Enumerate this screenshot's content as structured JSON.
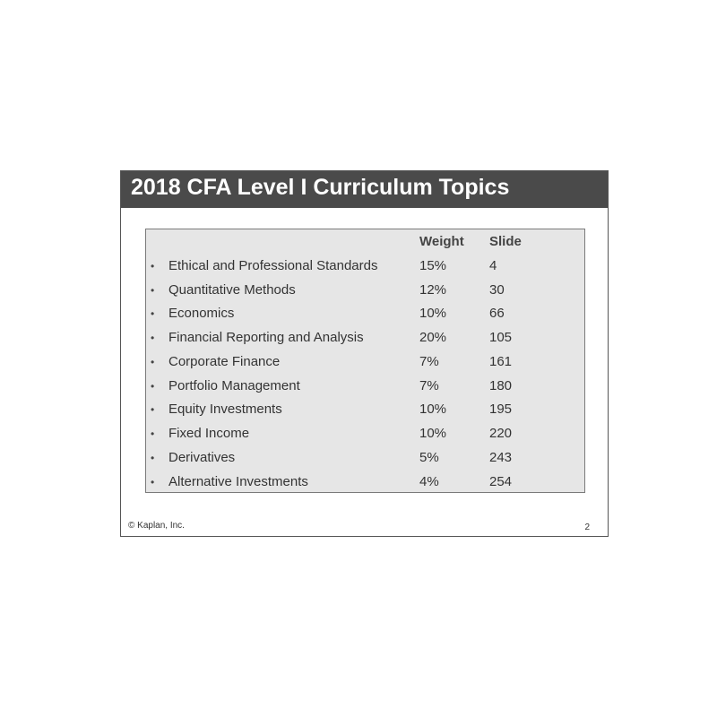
{
  "slide": {
    "title": "2018 CFA Level I Curriculum Topics",
    "columns": {
      "weight": "Weight",
      "slide": "Slide"
    },
    "rows": [
      {
        "topic": "Ethical and Professional Standards",
        "weight": "15%",
        "slide": "4"
      },
      {
        "topic": "Quantitative Methods",
        "weight": "12%",
        "slide": "30"
      },
      {
        "topic": "Economics",
        "weight": "10%",
        "slide": "66"
      },
      {
        "topic": "Financial Reporting and Analysis",
        "weight": "20%",
        "slide": "105"
      },
      {
        "topic": "Corporate Finance",
        "weight": "7%",
        "slide": "161"
      },
      {
        "topic": "Portfolio Management",
        "weight": "7%",
        "slide": "180"
      },
      {
        "topic": "Equity Investments",
        "weight": "10%",
        "slide": "195"
      },
      {
        "topic": "Fixed Income",
        "weight": "10%",
        "slide": "220"
      },
      {
        "topic": "Derivatives",
        "weight": "5%",
        "slide": "243"
      },
      {
        "topic": "Alternative Investments",
        "weight": "4%",
        "slide": "254"
      }
    ],
    "footer": {
      "copyright": "© Kaplan, Inc.",
      "page_number": "2"
    }
  }
}
